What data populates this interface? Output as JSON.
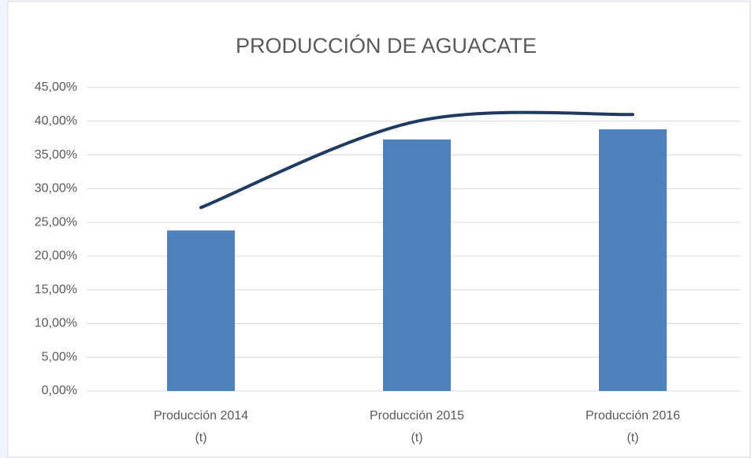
{
  "chart_data": {
    "type": "bar",
    "title": "PRODUCCIÓN DE AGUACATE",
    "categories": [
      "Producción 2014 (t)",
      "Producción 2015 (t)",
      "Producción 2016 (t)"
    ],
    "series": [
      {
        "color": "#4f81bd",
        "values": [
          23.8,
          37.3,
          38.8
        ]
      },
      {
        "type": "line",
        "color": "#1f3a5f",
        "values": [
          27.2,
          40,
          41
        ]
      }
    ],
    "ylim": [
      0,
      45
    ],
    "yticks": [
      {
        "value": 0,
        "label": "0,00%"
      },
      {
        "value": 5,
        "label": "5,00%"
      },
      {
        "value": 10,
        "label": "10,00%"
      },
      {
        "value": 15,
        "label": "15,00%"
      },
      {
        "value": 20,
        "label": "20,00%"
      },
      {
        "value": 25,
        "label": "25,00%"
      },
      {
        "value": 30,
        "label": "30,00%"
      },
      {
        "value": 35,
        "label": "35,00%"
      },
      {
        "value": 40,
        "label": "40,00%"
      },
      {
        "value": 45,
        "label": "45,00%"
      }
    ],
    "grid": true
  }
}
